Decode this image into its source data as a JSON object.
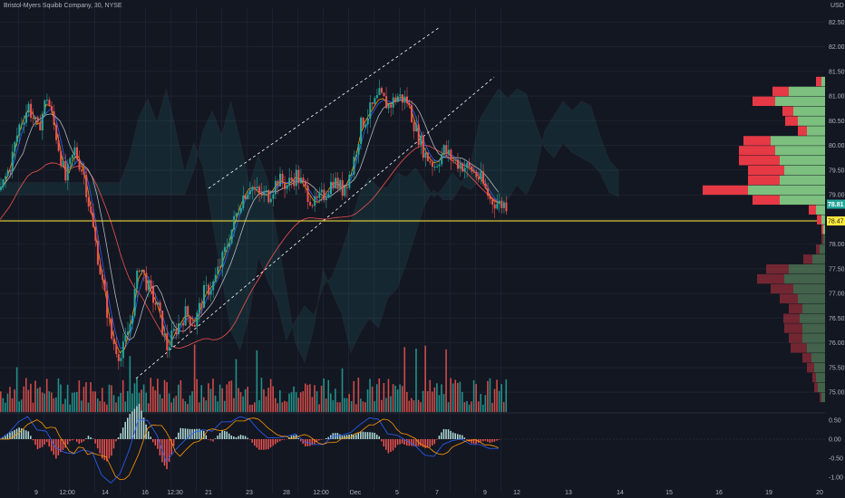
{
  "header": {
    "title": "Bristol-Myers Squibb Company, 30, NYSE"
  },
  "currency": "USD",
  "colors": {
    "bg": "#131722",
    "up": "#26a69a",
    "down": "#ef5350",
    "yellow": "#ffeb3b",
    "grid": "#1e222d"
  },
  "chart_data": {
    "type": "candlestick",
    "y_axis": {
      "ylim": [
        74.6,
        82.8
      ],
      "ticks": [
        "82.50",
        "82.00",
        "81.50",
        "81.00",
        "80.50",
        "80.00",
        "79.50",
        "79.00",
        "78.50",
        "78.00",
        "77.50",
        "77.00",
        "76.50",
        "76.00",
        "75.50",
        "75.00"
      ]
    },
    "x_axis": {
      "ticks": [
        "9",
        "12:00",
        "14",
        "16",
        "12:30",
        "21",
        "23",
        "28",
        "12:00",
        "Dec",
        "5",
        "7",
        "9",
        "12",
        "13",
        "14",
        "15",
        "16",
        "19",
        "20"
      ]
    },
    "price_labels": {
      "last": "78.81",
      "line": "78.47"
    },
    "macd_axis": {
      "ticks": [
        "0.50",
        "0.00",
        "-0.50",
        "-1.00"
      ]
    },
    "close_path": [
      {
        "t": 0,
        "p": 79.1
      },
      {
        "t": 2,
        "p": 79.6
      },
      {
        "t": 4,
        "p": 80.4
      },
      {
        "t": 6,
        "p": 80.8
      },
      {
        "t": 8,
        "p": 80.3
      },
      {
        "t": 10,
        "p": 81.0
      },
      {
        "t": 12,
        "p": 80.2
      },
      {
        "t": 14,
        "p": 79.3
      },
      {
        "t": 16,
        "p": 79.9
      },
      {
        "t": 18,
        "p": 79.4
      },
      {
        "t": 20,
        "p": 78.3
      },
      {
        "t": 22,
        "p": 77.2
      },
      {
        "t": 24,
        "p": 76.1
      },
      {
        "t": 26,
        "p": 75.7
      },
      {
        "t": 28,
        "p": 76.4
      },
      {
        "t": 30,
        "p": 77.6
      },
      {
        "t": 32,
        "p": 77.1
      },
      {
        "t": 34,
        "p": 76.7
      },
      {
        "t": 36,
        "p": 75.9
      },
      {
        "t": 38,
        "p": 76.3
      },
      {
        "t": 40,
        "p": 76.6
      },
      {
        "t": 42,
        "p": 76.4
      },
      {
        "t": 44,
        "p": 77.0
      },
      {
        "t": 46,
        "p": 77.2
      },
      {
        "t": 48,
        "p": 77.7
      },
      {
        "t": 50,
        "p": 78.3
      },
      {
        "t": 52,
        "p": 78.9
      },
      {
        "t": 54,
        "p": 79.2
      },
      {
        "t": 56,
        "p": 79.0
      },
      {
        "t": 58,
        "p": 79.0
      },
      {
        "t": 60,
        "p": 79.3
      },
      {
        "t": 62,
        "p": 79.2
      },
      {
        "t": 64,
        "p": 79.4
      },
      {
        "t": 66,
        "p": 79.1
      },
      {
        "t": 68,
        "p": 78.8
      },
      {
        "t": 70,
        "p": 79.0
      },
      {
        "t": 72,
        "p": 79.3
      },
      {
        "t": 74,
        "p": 79.1
      },
      {
        "t": 76,
        "p": 79.5
      },
      {
        "t": 78,
        "p": 80.4
      },
      {
        "t": 80,
        "p": 80.7
      },
      {
        "t": 82,
        "p": 81.0
      },
      {
        "t": 84,
        "p": 80.8
      },
      {
        "t": 86,
        "p": 81.0
      },
      {
        "t": 88,
        "p": 80.9
      },
      {
        "t": 90,
        "p": 80.3
      },
      {
        "t": 92,
        "p": 79.8
      },
      {
        "t": 94,
        "p": 79.6
      },
      {
        "t": 96,
        "p": 79.9
      },
      {
        "t": 98,
        "p": 79.7
      },
      {
        "t": 100,
        "p": 79.6
      },
      {
        "t": 102,
        "p": 79.5
      },
      {
        "t": 104,
        "p": 79.3
      },
      {
        "t": 106,
        "p": 78.9
      },
      {
        "t": 108,
        "p": 78.81
      }
    ]
  }
}
